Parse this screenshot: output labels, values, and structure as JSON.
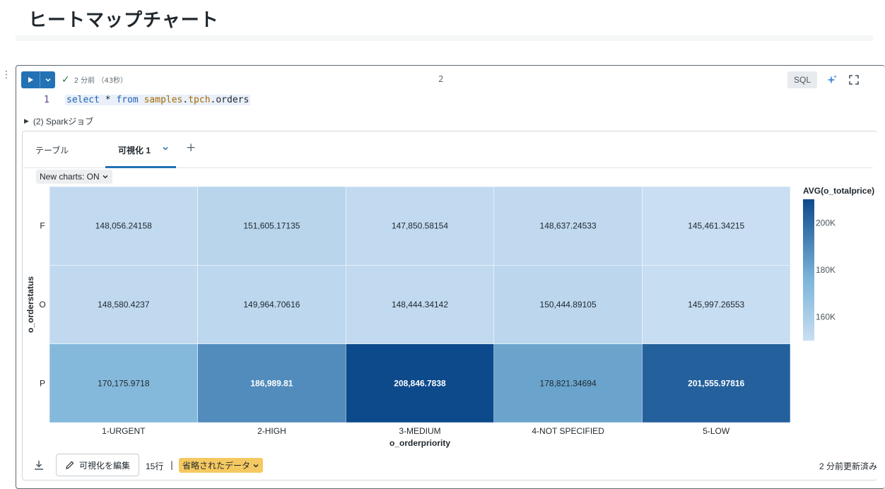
{
  "page": {
    "title": "ヒートマップチャート"
  },
  "cell": {
    "status_text": "2 分前 （43秒）",
    "index": "2",
    "language": "SQL",
    "line_number": "1",
    "code": {
      "kw_select": "select",
      "star": "*",
      "kw_from": "from",
      "id_samples": "samples",
      "id_tpch": "tpch",
      "dot": ".",
      "id_orders": "orders"
    },
    "spark_jobs": "(2) Sparkジョブ"
  },
  "tabs": {
    "table": "テーブル",
    "viz": "可視化 1",
    "add": "+"
  },
  "new_charts": "New charts: ON",
  "footer": {
    "edit_viz": "可視化を編集",
    "rows": "15行",
    "separator": "|",
    "truncated": "省略されたデータ",
    "updated": "2 分前更新済み"
  },
  "colors": {
    "accent": "#2272b4",
    "heat_low": "#c9def2",
    "heat_high": "#0d4a8c",
    "warning": "#f5c961"
  },
  "chart_data": {
    "type": "heatmap",
    "x": [
      "1-URGENT",
      "2-HIGH",
      "3-MEDIUM",
      "4-NOT SPECIFIED",
      "5-LOW"
    ],
    "y": [
      "F",
      "O",
      "P"
    ],
    "values": [
      [
        148056.24158,
        151605.17135,
        147850.58154,
        148637.24533,
        145461.34215
      ],
      [
        148580.4237,
        149964.70616,
        148444.34142,
        150444.89105,
        145997.26553
      ],
      [
        170175.9718,
        186989.81,
        208846.7838,
        178821.34694,
        201555.97816
      ]
    ],
    "labels": [
      [
        "148,056.24158",
        "151,605.17135",
        "147,850.58154",
        "148,637.24533",
        "145,461.34215"
      ],
      [
        "148,580.4237",
        "149,964.70616",
        "148,444.34142",
        "150,444.89105",
        "145,997.26553"
      ],
      [
        "170,175.9718",
        "186,989.81",
        "208,846.7838",
        "178,821.34694",
        "201,555.97816"
      ]
    ],
    "xlabel": "o_orderpriority",
    "ylabel": "o_orderstatus",
    "legend": {
      "title": "AVG(o_totalprice)",
      "ticks": [
        {
          "value": 200000,
          "label": "200K"
        },
        {
          "value": 180000,
          "label": "180K"
        },
        {
          "value": 160000,
          "label": "160K"
        }
      ],
      "range": [
        145461.34215,
        208846.7838
      ],
      "placement": "right"
    }
  }
}
